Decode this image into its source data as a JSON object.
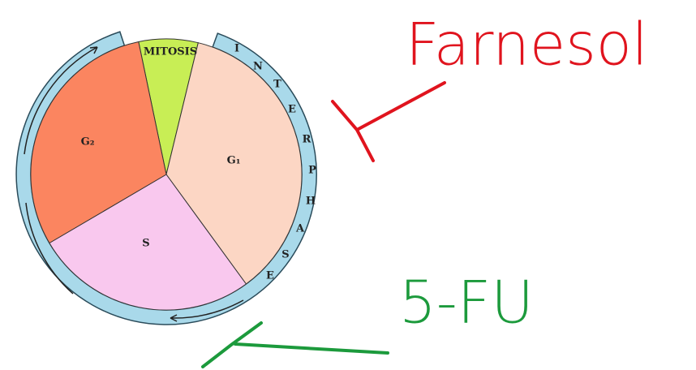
{
  "diagram": {
    "phases": {
      "mitosis": "MITOSIS",
      "g2": "G₂",
      "g1": "G₁",
      "s": "S"
    },
    "ring_letters": [
      "I",
      "N",
      "T",
      "E",
      "R",
      "P",
      "H",
      "A",
      "S",
      "E"
    ],
    "annotations": {
      "red": "Farnesol",
      "green": "5-FU"
    }
  }
}
